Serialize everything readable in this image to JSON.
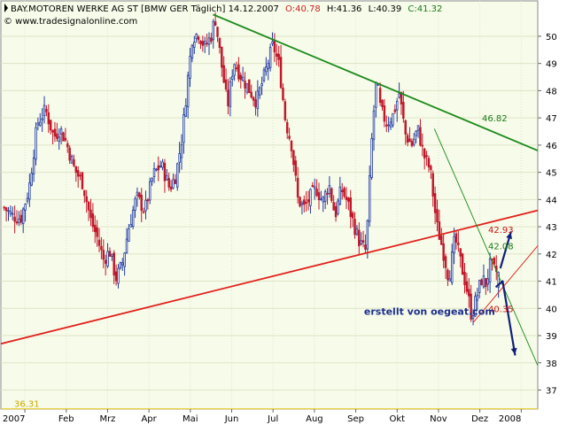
{
  "header": {
    "title": "BAY.MOTOREN WERKE AG ST [BMW GER  Täglich] 14.12.2007",
    "o_label": "O:40.78",
    "h_label": "H:41.36",
    "l_label": "L:40.39",
    "c_label": "C:41.32",
    "copyright": "© www.tradesignalonline.com"
  },
  "colors": {
    "background": "#f7fbe9",
    "up_candle": "#1f3a9e",
    "down_candle": "#c0182a",
    "green_line": "#1a8a1a",
    "red_line": "#e0201a",
    "blue_arrow": "#10207a",
    "o_color": "#cc2222",
    "l_color": "#1a7a1a",
    "c_color": "#1a7a1a",
    "level_line": "#e8cf30",
    "label_red": "#cc1111",
    "label_green": "#1a7a1a",
    "note_blue": "#1c2f8c"
  },
  "chart_data": {
    "type": "candlestick",
    "ylim": [
      36.3,
      51.3
    ],
    "y_ticks": [
      "37",
      "38",
      "39",
      "40",
      "41",
      "42",
      "43",
      "44",
      "45",
      "46",
      "47",
      "48",
      "49",
      "50"
    ],
    "x_ticks": [
      "2007",
      "Feb",
      "Mrz",
      "Apr",
      "Mai",
      "Jun",
      "Jul",
      "Aug",
      "Sep",
      "Okt",
      "Nov",
      "Dez",
      "2008"
    ],
    "x_tick_pos": [
      0.0,
      1.0,
      2.0,
      3.0,
      4.0,
      5.0,
      6.0,
      7.0,
      8.0,
      9.0,
      10.0,
      11.0,
      12.0
    ],
    "xlim": [
      -0.58,
      12.4
    ],
    "ohlc_series": [
      [
        -0.5,
        43.7
      ],
      [
        -0.3,
        43.4
      ],
      [
        -0.1,
        43.3
      ],
      [
        0.1,
        44.4
      ],
      [
        0.3,
        46.8
      ],
      [
        0.5,
        47.3
      ],
      [
        0.7,
        46.3
      ],
      [
        0.85,
        46.6
      ],
      [
        1.0,
        46.1
      ],
      [
        1.2,
        45.1
      ],
      [
        1.4,
        44.6
      ],
      [
        1.6,
        43.2
      ],
      [
        1.75,
        42.6
      ],
      [
        1.9,
        41.8
      ],
      [
        2.05,
        42.1
      ],
      [
        2.2,
        41.1
      ],
      [
        2.35,
        41.6
      ],
      [
        2.5,
        42.9
      ],
      [
        2.7,
        44.1
      ],
      [
        2.9,
        43.6
      ],
      [
        3.1,
        44.9
      ],
      [
        3.3,
        45.3
      ],
      [
        3.5,
        44.4
      ],
      [
        3.65,
        44.9
      ],
      [
        3.8,
        46.3
      ],
      [
        3.95,
        48.6
      ],
      [
        4.05,
        50.0
      ],
      [
        4.2,
        50.1
      ],
      [
        4.35,
        49.6
      ],
      [
        4.5,
        50.0
      ],
      [
        4.6,
        50.7
      ],
      [
        4.75,
        49.0
      ],
      [
        4.9,
        47.4
      ],
      [
        5.05,
        49.1
      ],
      [
        5.2,
        48.6
      ],
      [
        5.4,
        48.1
      ],
      [
        5.6,
        47.6
      ],
      [
        5.8,
        48.6
      ],
      [
        6.0,
        49.7
      ],
      [
        6.15,
        48.9
      ],
      [
        6.3,
        46.9
      ],
      [
        6.45,
        46.0
      ],
      [
        6.6,
        44.0
      ],
      [
        6.75,
        43.7
      ],
      [
        6.9,
        44.1
      ],
      [
        7.05,
        44.4
      ],
      [
        7.2,
        43.9
      ],
      [
        7.35,
        44.6
      ],
      [
        7.5,
        43.4
      ],
      [
        7.65,
        44.4
      ],
      [
        7.8,
        43.9
      ],
      [
        7.95,
        43.1
      ],
      [
        8.1,
        42.4
      ],
      [
        8.25,
        42.1
      ],
      [
        8.4,
        46.6
      ],
      [
        8.5,
        48.4
      ],
      [
        8.6,
        47.3
      ],
      [
        8.75,
        46.8
      ],
      [
        8.9,
        47.1
      ],
      [
        9.05,
        47.9
      ],
      [
        9.2,
        46.4
      ],
      [
        9.35,
        46.0
      ],
      [
        9.5,
        46.6
      ],
      [
        9.65,
        45.6
      ],
      [
        9.8,
        45.1
      ],
      [
        9.95,
        43.1
      ],
      [
        10.1,
        42.2
      ],
      [
        10.25,
        41.1
      ],
      [
        10.4,
        42.6
      ],
      [
        10.55,
        41.6
      ],
      [
        10.7,
        40.6
      ],
      [
        10.8,
        39.7
      ],
      [
        10.95,
        40.6
      ],
      [
        11.05,
        41.1
      ],
      [
        11.15,
        40.9
      ],
      [
        11.25,
        41.6
      ],
      [
        11.35,
        41.4
      ],
      [
        11.45,
        41.3
      ]
    ],
    "last_candle": {
      "open": 40.78,
      "high": 41.36,
      "low": 40.39,
      "close": 41.32
    },
    "trendlines": [
      {
        "color": "green_line",
        "width": 1.8,
        "points": [
          [
            4.55,
            50.8
          ],
          [
            12.4,
            45.8
          ]
        ]
      },
      {
        "color": "red_line",
        "width": 1.8,
        "points": [
          [
            -0.58,
            38.7
          ],
          [
            12.4,
            43.6
          ]
        ]
      },
      {
        "color": "green_line",
        "width": 0.9,
        "points": [
          [
            9.9,
            46.6
          ],
          [
            12.4,
            37.9
          ]
        ]
      },
      {
        "color": "red_line",
        "width": 0.9,
        "points": [
          [
            10.85,
            39.5
          ],
          [
            12.4,
            42.3
          ]
        ]
      }
    ],
    "arrows": [
      {
        "from": [
          11.5,
          41.5
        ],
        "to": [
          11.75,
          42.8
        ]
      },
      {
        "from": [
          11.4,
          40.8
        ],
        "to": [
          11.55,
          41.0
        ]
      },
      {
        "from": [
          11.55,
          41.0
        ],
        "to": [
          11.85,
          38.3
        ]
      }
    ],
    "value_labels": [
      {
        "text": "46.82",
        "x": 11.05,
        "y": 47.0,
        "color": "label_green"
      },
      {
        "text": "42.93",
        "x": 11.2,
        "y": 42.9,
        "color": "label_red"
      },
      {
        "text": "42.08",
        "x": 11.2,
        "y": 42.3,
        "color": "label_green"
      },
      {
        "text": "40.35",
        "x": 11.2,
        "y": 40.0,
        "color": "label_red"
      }
    ],
    "level_line": {
      "value": 36.31,
      "label": "36.31"
    },
    "note": {
      "text": "erstellt von oegeat.com",
      "x": 8.2,
      "y": 39.9
    }
  }
}
